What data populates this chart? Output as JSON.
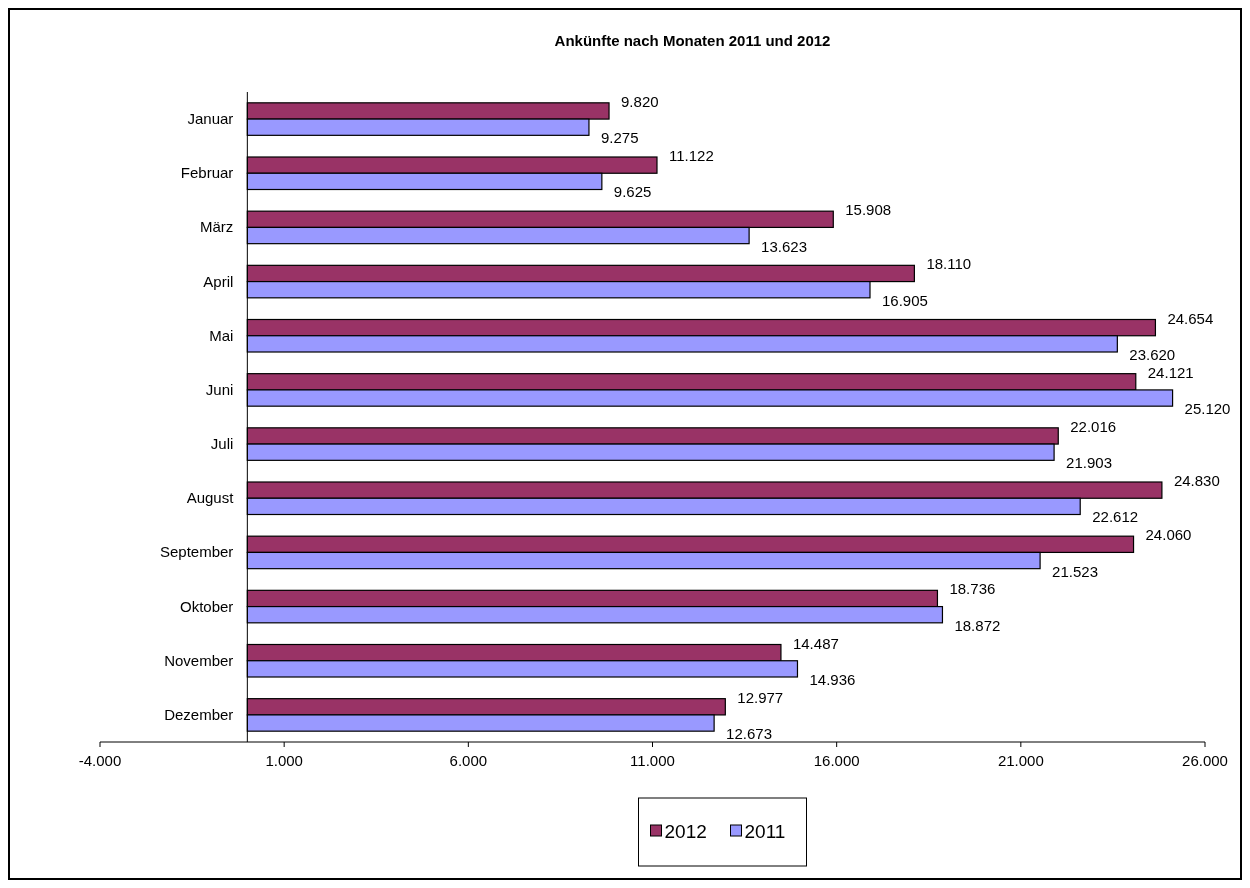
{
  "chart_data": {
    "type": "bar",
    "orientation": "horizontal",
    "title": "Ankünfte nach Monaten 2011 und 2012",
    "categories": [
      "Januar",
      "Februar",
      "März",
      "April",
      "Mai",
      "Juni",
      "Juli",
      "August",
      "September",
      "Oktober",
      "November",
      "Dezember"
    ],
    "series": [
      {
        "name": "2012",
        "color": "#993366",
        "values": [
          9820,
          11122,
          15908,
          18110,
          24654,
          24121,
          22016,
          24830,
          24060,
          18736,
          14487,
          12977
        ],
        "value_labels": [
          "9.820",
          "11.122",
          "15.908",
          "18.110",
          "24.654",
          "24.121",
          "22.016",
          "24.830",
          "24.060",
          "18.736",
          "14.487",
          "12.977"
        ]
      },
      {
        "name": "2011",
        "color": "#9999ff",
        "values": [
          9275,
          9625,
          13623,
          16905,
          23620,
          25120,
          21903,
          22612,
          21523,
          18872,
          14936,
          12673
        ],
        "value_labels": [
          "9.275",
          "9.625",
          "13.623",
          "16.905",
          "23.620",
          "25.120",
          "21.903",
          "22.612",
          "21.523",
          "18.872",
          "14.936",
          "12.673"
        ]
      }
    ],
    "xlim": [
      -4000,
      26000
    ],
    "xticks": [
      {
        "value": -4000,
        "label": "-4.000"
      },
      {
        "value": 1000,
        "label": "1.000"
      },
      {
        "value": 6000,
        "label": "6.000"
      },
      {
        "value": 11000,
        "label": "11.000"
      },
      {
        "value": 16000,
        "label": "16.000"
      },
      {
        "value": 21000,
        "label": "21.000"
      },
      {
        "value": 26000,
        "label": "26.000"
      }
    ],
    "legend": "bottom"
  }
}
